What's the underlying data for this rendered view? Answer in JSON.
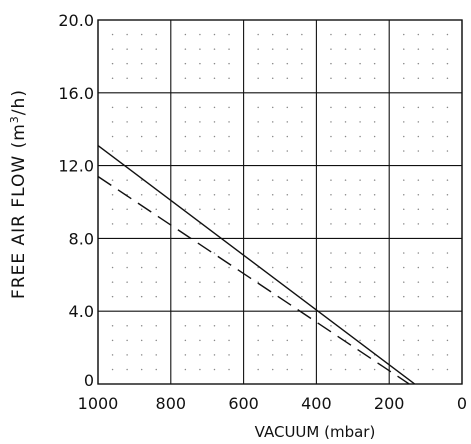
{
  "chart_data": {
    "type": "line",
    "xlabel": "VACUUM (mbar)",
    "ylabel": "FREE AIR FLOW (m",
    "ylabel_sup": "3",
    "ylabel_tail": "/h)",
    "xlim": [
      1000,
      0
    ],
    "ylim": [
      0,
      20
    ],
    "x_ticks": [
      1000,
      800,
      600,
      400,
      200,
      0
    ],
    "y_ticks": [
      0,
      4,
      8,
      12,
      16,
      20
    ],
    "y_tick_labels": [
      "0",
      "4.0",
      "8.0",
      "12.0",
      "16.0",
      "20.0"
    ],
    "x_tick_labels": [
      "1000",
      "800",
      "600",
      "400",
      "200",
      "0"
    ],
    "grid": true,
    "minor_dot_grid": true,
    "series": [
      {
        "style": "solid",
        "x": [
          1000,
          130
        ],
        "y": [
          13.1,
          0
        ]
      },
      {
        "style": "dashed",
        "x": [
          1000,
          145
        ],
        "y": [
          11.4,
          0
        ]
      }
    ]
  }
}
